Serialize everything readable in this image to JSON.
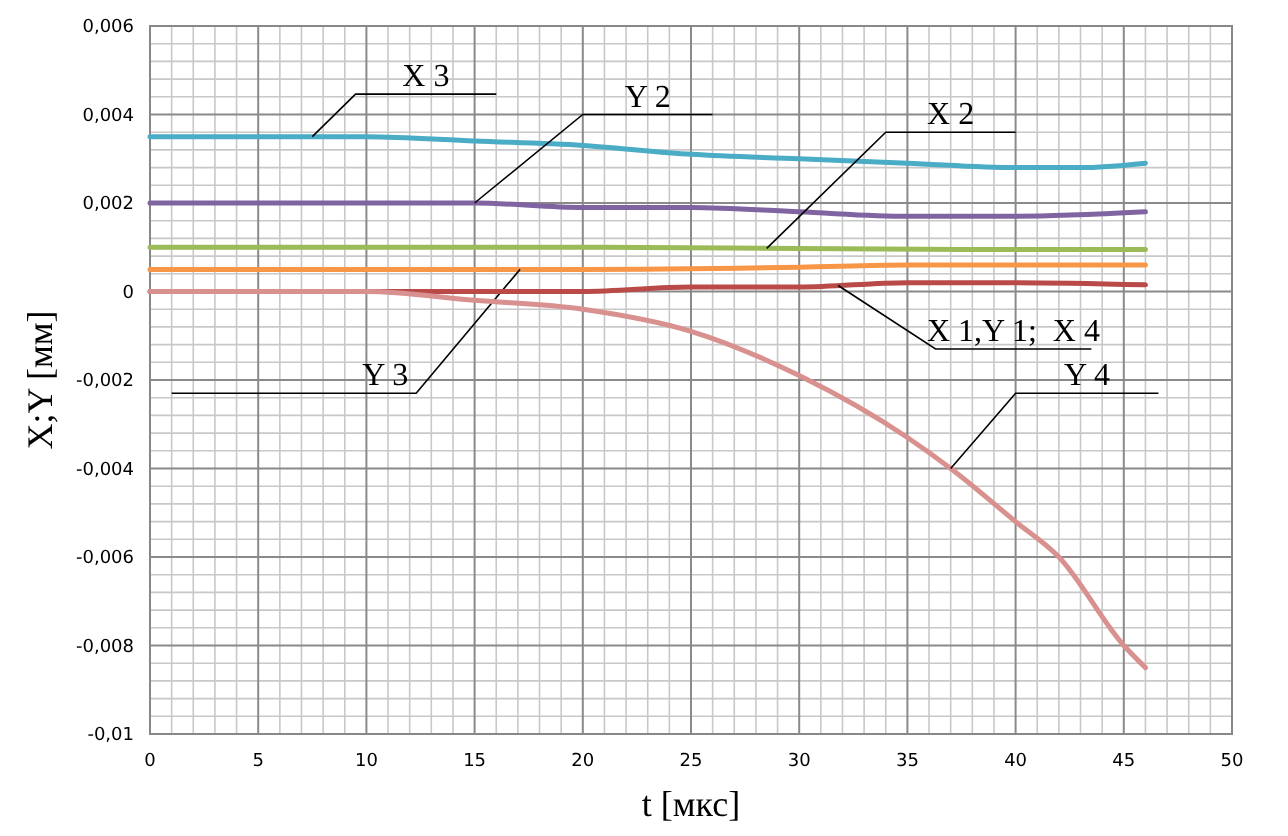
{
  "chart_data": {
    "type": "line",
    "xlabel": "t [мкс]",
    "ylabel": "X;Y [мм]",
    "xlim": [
      0,
      50
    ],
    "xticks": [
      0,
      5,
      10,
      15,
      20,
      25,
      30,
      35,
      40,
      45,
      50
    ],
    "ylim": [
      -0.01,
      0.006
    ],
    "yticks": [
      {
        "value": -0.01,
        "label": "-0,01"
      },
      {
        "value": -0.008,
        "label": "-0,008"
      },
      {
        "value": -0.006,
        "label": "-0,006"
      },
      {
        "value": -0.004,
        "label": "-0,004"
      },
      {
        "value": -0.002,
        "label": "-0,002"
      },
      {
        "value": 0,
        "label": "0"
      },
      {
        "value": 0.002,
        "label": "0,002"
      },
      {
        "value": 0.004,
        "label": "0,004"
      },
      {
        "value": 0.006,
        "label": "0,006"
      }
    ],
    "grid": true,
    "marker": "none",
    "line_style": "solid",
    "series": [
      {
        "name": "X 3",
        "color": "#4bacc6",
        "x": [
          0,
          5,
          10,
          15,
          20,
          25,
          30,
          35,
          40,
          43,
          46
        ],
        "values": [
          0.0035,
          0.0035,
          0.0035,
          0.0034,
          0.0033,
          0.0031,
          0.003,
          0.0029,
          0.0028,
          0.0028,
          0.0029
        ]
      },
      {
        "name": "Y 2",
        "color": "#8064a2",
        "x": [
          0,
          5,
          10,
          15,
          20,
          25,
          30,
          35,
          40,
          46
        ],
        "values": [
          0.002,
          0.002,
          0.002,
          0.002,
          0.0019,
          0.0019,
          0.0018,
          0.0017,
          0.0017,
          0.0018
        ]
      },
      {
        "name": "X 2",
        "color": "#9bbb59",
        "x": [
          0,
          10,
          20,
          30,
          40,
          46
        ],
        "values": [
          0.001,
          0.001,
          0.001,
          0.00097,
          0.00095,
          0.00095
        ]
      },
      {
        "name": "Y 3",
        "color": "#f79646",
        "x": [
          0,
          10,
          20,
          30,
          35,
          40,
          46
        ],
        "values": [
          0.0005,
          0.0005,
          0.0005,
          0.00055,
          0.0006,
          0.0006,
          0.0006
        ]
      },
      {
        "name": "X 1,Y 1;  X 4",
        "color": "#b94a48",
        "x": [
          0,
          10,
          15,
          20,
          25,
          30,
          35,
          40,
          46
        ],
        "values": [
          0,
          0,
          0,
          0,
          0.0001,
          0.0001,
          0.0002,
          0.0002,
          0.00015
        ]
      },
      {
        "name": "Y 4",
        "color": "#d9918f",
        "x": [
          0,
          5,
          10,
          15,
          20,
          25,
          30,
          35,
          37,
          40,
          42,
          45,
          46
        ],
        "values": [
          0,
          0,
          0,
          -0.0002,
          -0.0004,
          -0.0009,
          -0.0019,
          -0.0033,
          -0.004,
          -0.0052,
          -0.006,
          -0.008,
          -0.0085
        ]
      }
    ]
  }
}
